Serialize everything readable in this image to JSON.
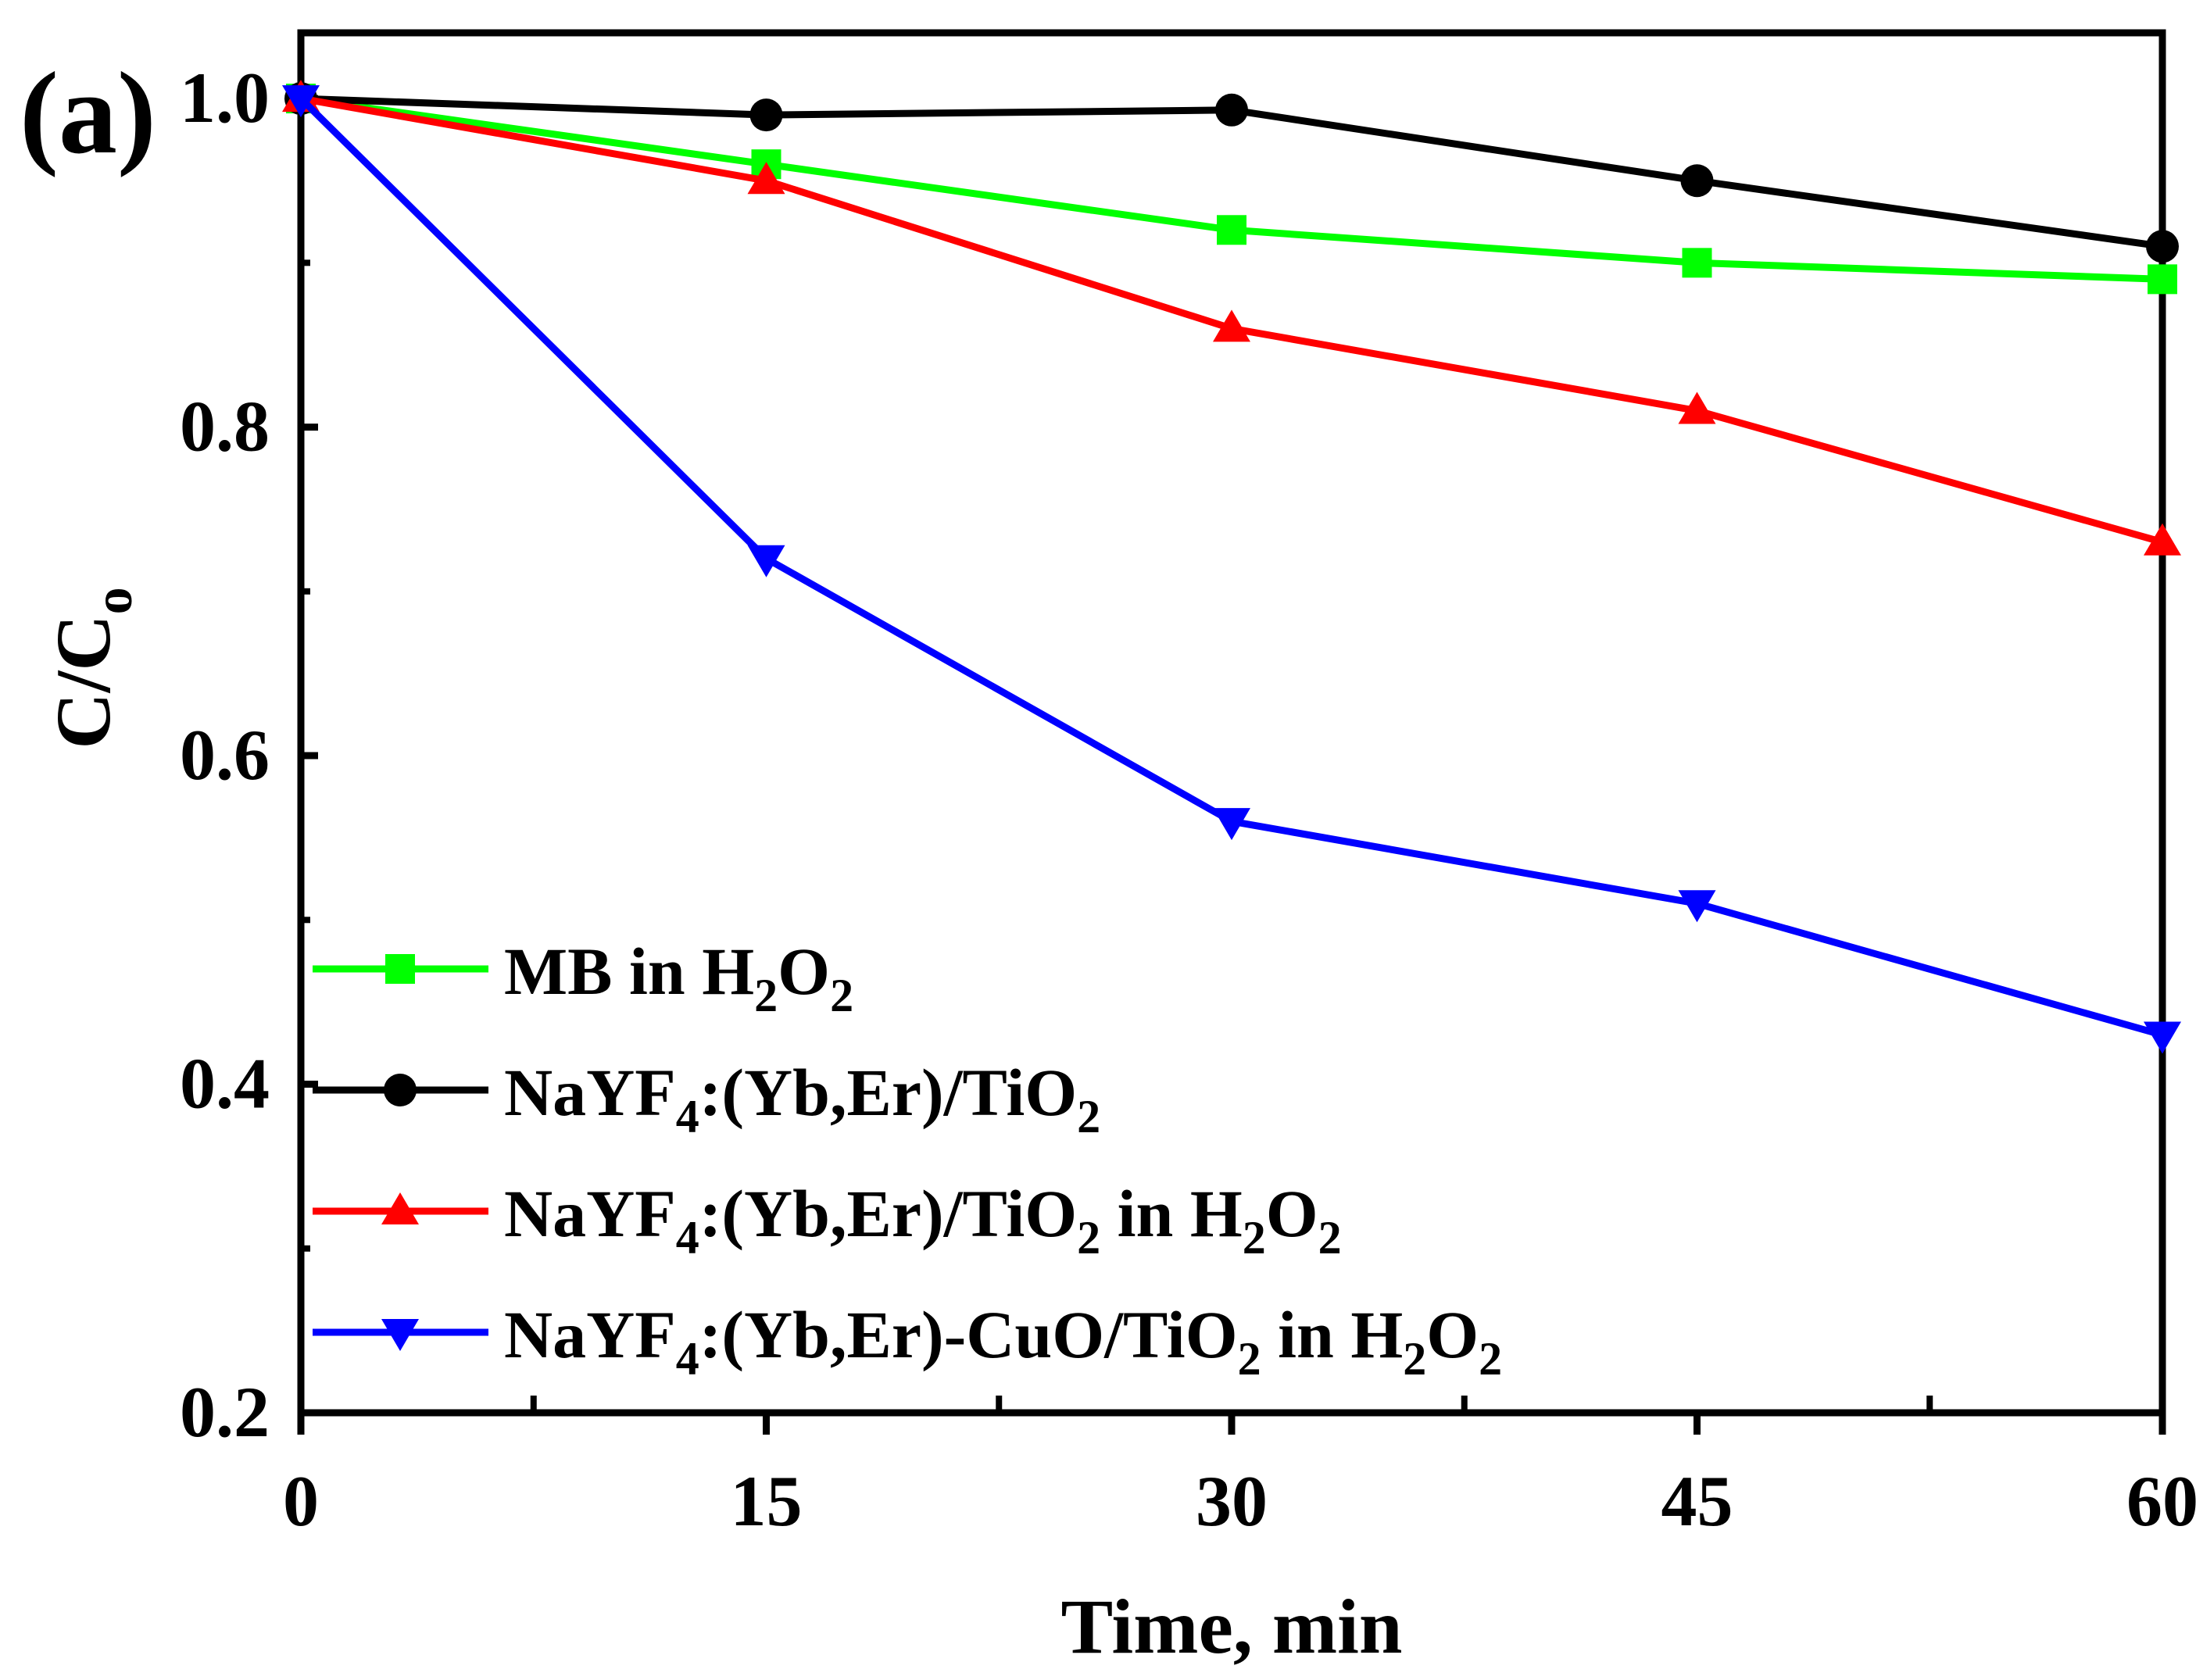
{
  "panel_label": "(a)",
  "chart_data": {
    "type": "line",
    "xlabel": "Time, min",
    "ylabel": {
      "main": "C/C",
      "sub": "o"
    },
    "x": [
      0,
      15,
      30,
      45,
      60
    ],
    "xlim": [
      0,
      60
    ],
    "ylim": [
      0.2,
      1.04
    ],
    "x_ticks": [
      0,
      15,
      30,
      45,
      60
    ],
    "x_tick_labels": [
      "0",
      "15",
      "30",
      "45",
      "60"
    ],
    "x_minor_ticks": [
      7.5,
      22.5,
      37.5,
      52.5
    ],
    "y_ticks": [
      0.2,
      0.4,
      0.6,
      0.8,
      1.0
    ],
    "y_tick_labels": [
      "0.2",
      "0.4",
      "0.6",
      "0.8",
      "1.0"
    ],
    "y_minor_ticks": [
      0.3,
      0.5,
      0.7,
      0.9
    ],
    "grid": false,
    "legend_position": "bottom-left",
    "series": [
      {
        "key": "mb",
        "name": "MB in H2O2",
        "name_parts": [
          [
            "MB in H",
            ""
          ],
          [
            "2",
            "sub"
          ],
          [
            "O",
            ""
          ],
          [
            "2",
            "sub"
          ]
        ],
        "color": "#00ff00",
        "marker": "square",
        "values": [
          1.0,
          0.96,
          0.92,
          0.9,
          0.89
        ]
      },
      {
        "key": "nyt",
        "name": "NaYF4:(Yb,Er)/TiO2",
        "name_parts": [
          [
            "NaYF",
            ""
          ],
          [
            "4",
            "sub"
          ],
          [
            ":(Yb,Er)/TiO",
            ""
          ],
          [
            "2",
            "sub"
          ]
        ],
        "color": "#000000",
        "marker": "circle",
        "values": [
          1.0,
          0.99,
          0.993,
          0.95,
          0.91
        ]
      },
      {
        "key": "nyt_h2o2",
        "name": "NaYF4:(Yb,Er)/TiO2 in H2O2",
        "name_parts": [
          [
            "NaYF",
            ""
          ],
          [
            "4",
            "sub"
          ],
          [
            ":(Yb,Er)/TiO",
            ""
          ],
          [
            "2",
            "sub"
          ],
          [
            " in H",
            ""
          ],
          [
            "2",
            "sub"
          ],
          [
            "O",
            ""
          ],
          [
            "2",
            "sub"
          ]
        ],
        "color": "#ff0000",
        "marker": "triangle-up",
        "values": [
          1.0,
          0.95,
          0.86,
          0.81,
          0.73
        ]
      },
      {
        "key": "nycuo",
        "name": "NaYF4:(Yb,Er)-CuO/TiO2 in H2O2",
        "name_parts": [
          [
            "NaYF",
            ""
          ],
          [
            "4",
            "sub"
          ],
          [
            ":(Yb,Er)-CuO/TiO",
            ""
          ],
          [
            "2",
            "sub"
          ],
          [
            " in H",
            ""
          ],
          [
            "2",
            "sub"
          ],
          [
            "O",
            ""
          ],
          [
            "2",
            "sub"
          ]
        ],
        "color": "#0000ff",
        "marker": "triangle-down",
        "values": [
          1.0,
          0.72,
          0.56,
          0.51,
          0.43
        ]
      }
    ]
  }
}
